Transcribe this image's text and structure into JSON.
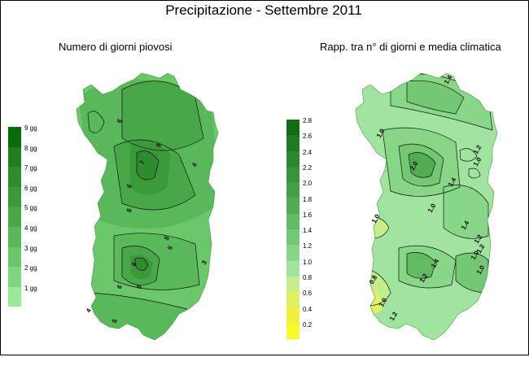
{
  "title": "Precipitazione - Settembre 2011",
  "left_map": {
    "subtitle": "Numero di giorni piovosi",
    "legend": [
      {
        "label": "9 gg",
        "color": "#0a6b0a"
      },
      {
        "label": "8 gg",
        "color": "#1f7f1f"
      },
      {
        "label": "7 gg",
        "color": "#2e8b2e"
      },
      {
        "label": "6 gg",
        "color": "#3a9a3a"
      },
      {
        "label": "5 gg",
        "color": "#48a848"
      },
      {
        "label": "4 gg",
        "color": "#59b859"
      },
      {
        "label": "3 gg",
        "color": "#6ac86a"
      },
      {
        "label": "2 gg",
        "color": "#7fd67f"
      },
      {
        "label": "1 gg",
        "color": "#9ae89a"
      }
    ],
    "contour_labels": [
      "6",
      "5",
      "7",
      "6",
      "5",
      "4",
      "6",
      "5",
      "6",
      "5",
      "3",
      "6",
      "5",
      "4"
    ]
  },
  "right_map": {
    "subtitle": "Rapp. tra n° di giorni e media climatica",
    "legend": [
      {
        "label": "2.8",
        "color": "#146b14"
      },
      {
        "label": "2.6",
        "color": "#207a20"
      },
      {
        "label": "2.4",
        "color": "#2c882c"
      },
      {
        "label": "2.2",
        "color": "#389438"
      },
      {
        "label": "2.0",
        "color": "#44a044"
      },
      {
        "label": "1.8",
        "color": "#52ad52"
      },
      {
        "label": "1.6",
        "color": "#62bb62"
      },
      {
        "label": "1.4",
        "color": "#74c874"
      },
      {
        "label": "1.2",
        "color": "#88d688"
      },
      {
        "label": "1.0",
        "color": "#a0e4a0"
      },
      {
        "label": "0.8",
        "color": "#c4ee8a"
      },
      {
        "label": "0.6",
        "color": "#dff060"
      },
      {
        "label": "0.4",
        "color": "#eef23c"
      },
      {
        "label": "0.2",
        "color": "#fafa28"
      }
    ],
    "contour_labels": [
      "1.4",
      "1.0",
      "1.2",
      "1.0",
      "2.0",
      "1.4",
      "1.0",
      "1.2",
      "1.4",
      "1.2",
      "1.0",
      "1.0",
      "1.0",
      "1.2",
      "0.8",
      "1.0",
      "1.2",
      "1.4"
    ]
  }
}
